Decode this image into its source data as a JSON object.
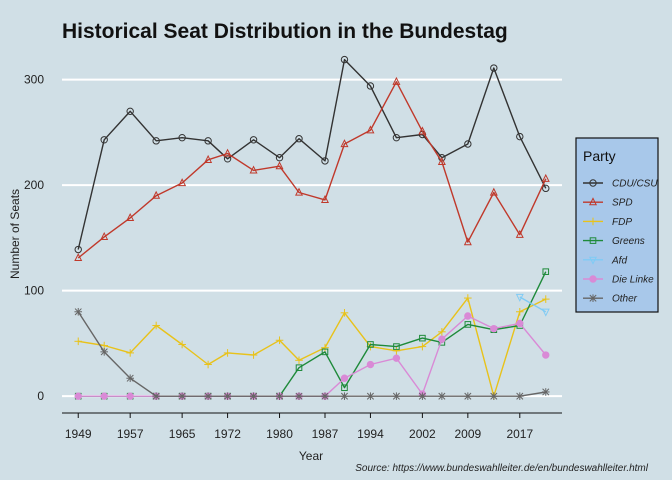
{
  "chart_data": {
    "type": "line",
    "title": "Historical Seat Distribution in the Bundestag",
    "xlabel": "Year",
    "ylabel": "Number of Seats",
    "caption": "Source: https://www.bundeswahlleiter.de/en/bundeswahlleiter.html",
    "x": [
      1949,
      1953,
      1957,
      1961,
      1965,
      1969,
      1972,
      1976,
      1980,
      1983,
      1987,
      1990,
      1994,
      1998,
      2002,
      2005,
      2009,
      2013,
      2017,
      2021
    ],
    "x_ticks": [
      1949,
      1957,
      1965,
      1972,
      1980,
      1987,
      1994,
      2002,
      2009,
      2017
    ],
    "y_ticks": [
      0,
      100,
      200,
      300
    ],
    "ylim": [
      -15,
      330
    ],
    "grid": "horizontal",
    "legend": {
      "title": "Party",
      "placement": "right"
    },
    "series": [
      {
        "name": "CDU/CSU",
        "color": "#333333",
        "marker": "circle",
        "values": [
          139,
          243,
          270,
          242,
          245,
          242,
          225,
          243,
          226,
          244,
          223,
          319,
          294,
          245,
          248,
          226,
          239,
          311,
          246,
          197
        ]
      },
      {
        "name": "SPD",
        "color": "#c0392b",
        "marker": "triangle-up",
        "values": [
          131,
          151,
          169,
          190,
          202,
          224,
          230,
          214,
          218,
          193,
          186,
          239,
          252,
          298,
          251,
          222,
          146,
          193,
          153,
          206
        ]
      },
      {
        "name": "FDP",
        "color": "#e8c21a",
        "marker": "plus",
        "values": [
          52,
          48,
          41,
          67,
          49,
          30,
          41,
          39,
          53,
          34,
          46,
          79,
          47,
          43,
          47,
          61,
          93,
          0,
          80,
          92
        ]
      },
      {
        "name": "Greens",
        "color": "#1e8a3a",
        "marker": "square",
        "values": [
          0,
          0,
          0,
          0,
          0,
          0,
          0,
          0,
          0,
          27,
          42,
          8,
          49,
          47,
          55,
          51,
          68,
          63,
          67,
          118
        ]
      },
      {
        "name": "Afd",
        "color": "#7fcbf5",
        "marker": "triangle-down",
        "values": [
          null,
          null,
          null,
          null,
          null,
          null,
          null,
          null,
          null,
          null,
          null,
          null,
          null,
          null,
          null,
          null,
          null,
          null,
          94,
          80
        ]
      },
      {
        "name": "Die Linke",
        "color": "#d98ad6",
        "marker": "circle-filled",
        "values": [
          0,
          0,
          0,
          0,
          0,
          0,
          0,
          0,
          0,
          0,
          0,
          17,
          30,
          36,
          2,
          54,
          76,
          64,
          69,
          39
        ]
      },
      {
        "name": "Other",
        "color": "#666666",
        "marker": "asterisk",
        "values": [
          80,
          42,
          17,
          0,
          0,
          0,
          0,
          0,
          0,
          0,
          0,
          0,
          0,
          0,
          0,
          0,
          0,
          0,
          0,
          4
        ]
      }
    ]
  }
}
